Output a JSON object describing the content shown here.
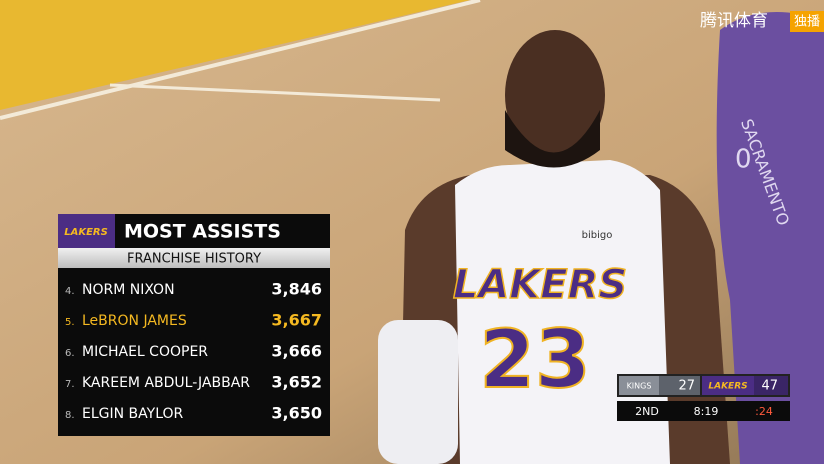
{
  "watermark": {
    "brand": "腾讯体育",
    "badge": "独播"
  },
  "graphic": {
    "logo": "LAKERS",
    "title": "MOST ASSISTS",
    "subtitle": "FRANCHISE HISTORY",
    "rows": [
      {
        "rank": "4.",
        "name": "NORM NIXON",
        "value": "3,846"
      },
      {
        "rank": "5.",
        "name": "LeBRON JAMES",
        "value": "3,667",
        "highlight": true
      },
      {
        "rank": "6.",
        "name": "MICHAEL COOPER",
        "value": "3,666"
      },
      {
        "rank": "7.",
        "name": "KAREEM ABDUL-JABBAR",
        "value": "3,652"
      },
      {
        "rank": "8.",
        "name": "ELGIN BAYLOR",
        "value": "3,650"
      }
    ]
  },
  "scoreboard": {
    "away_team": "KINGS",
    "away_score": "27",
    "home_team": "LAKERS",
    "home_score": "47",
    "period": "2ND",
    "clock": "8:19",
    "shot_clock": ":24"
  },
  "jersey": {
    "team": "LAKERS",
    "number": "23",
    "sponsor": "bibigo"
  },
  "opponent_jersey": {
    "team": "SACRAMENTO",
    "number": "0"
  }
}
